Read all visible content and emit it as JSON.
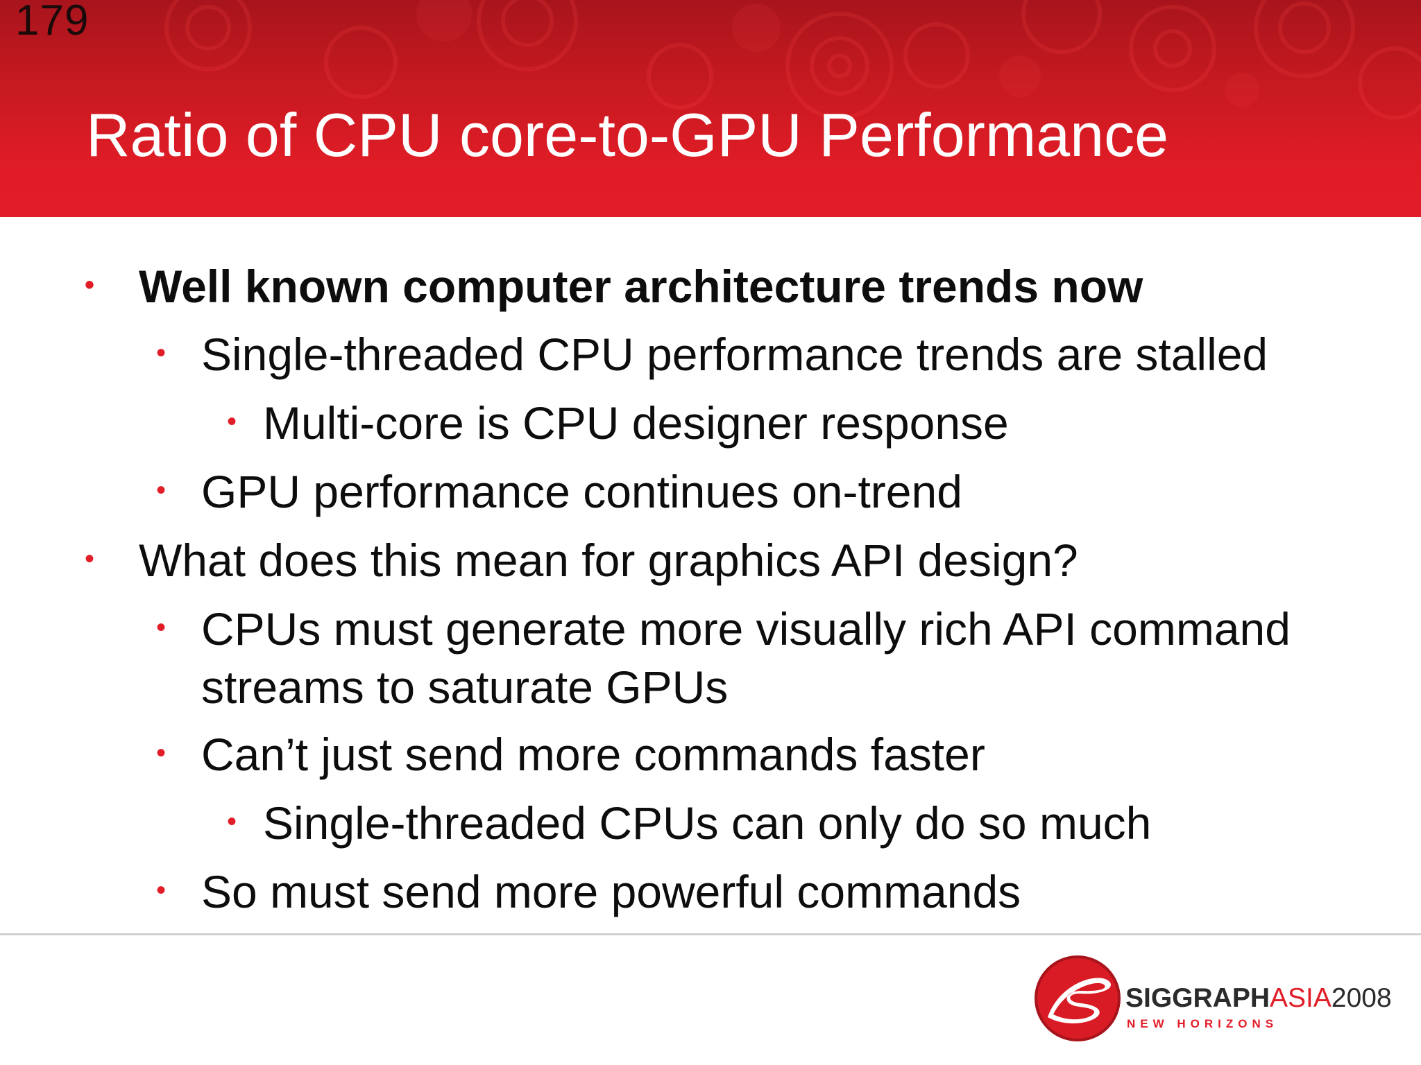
{
  "slide": {
    "number": "179",
    "title": "Ratio of CPU core-to-GPU Performance"
  },
  "bullets": [
    {
      "level": 1,
      "text": "Well known computer architecture trends now",
      "bold": true
    },
    {
      "level": 2,
      "text": "Single-threaded CPU performance trends are stalled"
    },
    {
      "level": 3,
      "text": "Multi-core is CPU designer response"
    },
    {
      "level": 2,
      "text": "GPU performance continues on-trend"
    },
    {
      "level": 1,
      "text": "What does this mean for graphics API design?"
    },
    {
      "level": 2,
      "text": "CPUs must generate more visually rich API command"
    },
    {
      "level": 2,
      "text": "streams to saturate GPUs",
      "continuation": true
    },
    {
      "level": 2,
      "text": "Can’t just send more commands faster"
    },
    {
      "level": 3,
      "text": "Single-threaded CPUs can only do so much"
    },
    {
      "level": 2,
      "text": "So must send more powerful commands"
    }
  ],
  "bullet_glyph": "•",
  "footer": {
    "brand_part1": "SIGGRAPH",
    "brand_part2": "ASIA",
    "brand_part3": "2008",
    "tagline": "NEW HORIZONS"
  },
  "colors": {
    "accent_red": "#e11d28",
    "header_dark_red": "#a8141c",
    "text": "#0d0d0d"
  }
}
